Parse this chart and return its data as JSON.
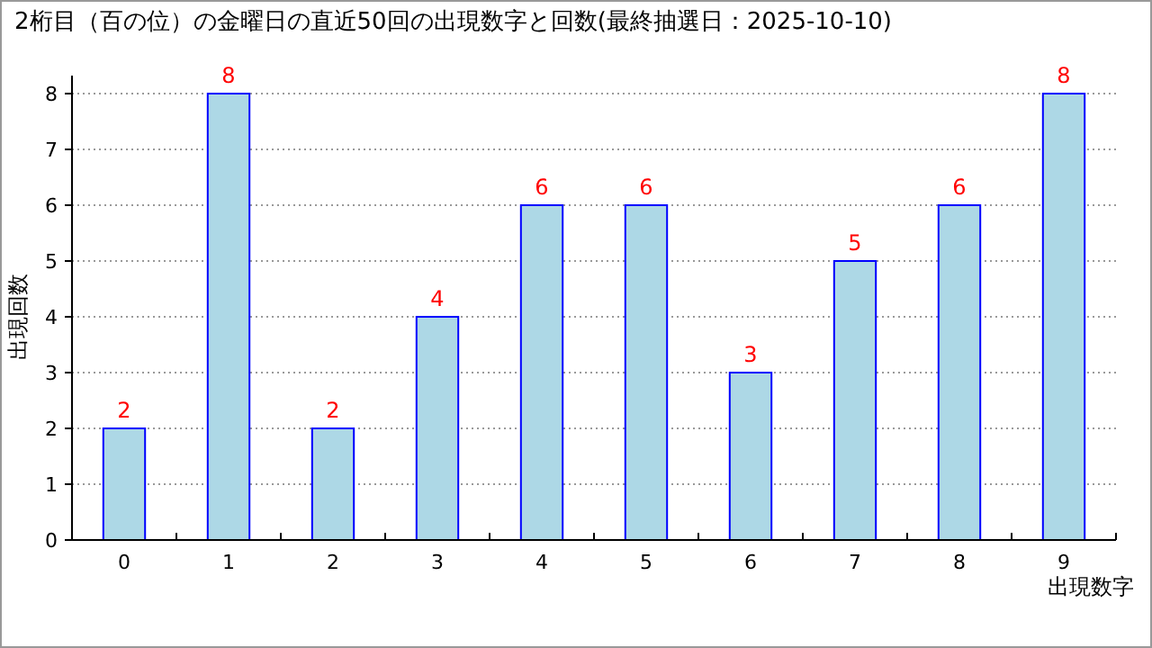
{
  "chart_data": {
    "type": "bar",
    "title": "2桁目（百の位）の金曜日の直近50回の出現数字と回数(最終抽選日：2025-10-10)",
    "xlabel": "出現数字",
    "ylabel": "出現回数",
    "categories": [
      "0",
      "1",
      "2",
      "3",
      "4",
      "5",
      "6",
      "7",
      "8",
      "9"
    ],
    "values": [
      2,
      8,
      2,
      4,
      6,
      6,
      3,
      5,
      6,
      8
    ],
    "color": "#add8e6",
    "ylim": [
      0,
      8
    ],
    "yticks": [
      0,
      1,
      2,
      3,
      4,
      5,
      6,
      7,
      8
    ],
    "grid": "y",
    "data_labels": true
  }
}
